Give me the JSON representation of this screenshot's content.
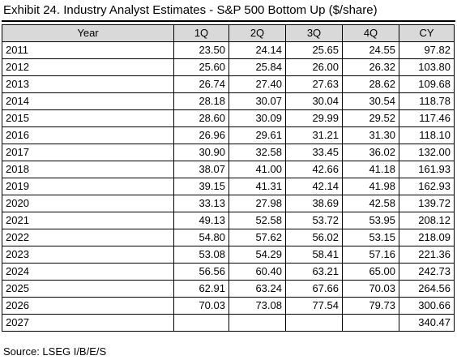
{
  "title": "Exhibit 24. Industry Analyst Estimates - S&P 500 Bottom Up ($/share)",
  "table": {
    "columns": [
      "Year",
      "1Q",
      "2Q",
      "3Q",
      "4Q",
      "CY"
    ],
    "rows": [
      [
        "2011",
        "23.50",
        "24.14",
        "25.65",
        "24.55",
        "97.82"
      ],
      [
        "2012",
        "25.60",
        "25.84",
        "26.00",
        "26.32",
        "103.80"
      ],
      [
        "2013",
        "26.74",
        "27.40",
        "27.63",
        "28.62",
        "109.68"
      ],
      [
        "2014",
        "28.18",
        "30.07",
        "30.04",
        "30.54",
        "118.78"
      ],
      [
        "2015",
        "28.60",
        "30.09",
        "29.99",
        "29.52",
        "117.46"
      ],
      [
        "2016",
        "26.96",
        "29.61",
        "31.21",
        "31.30",
        "118.10"
      ],
      [
        "2017",
        "30.90",
        "32.58",
        "33.45",
        "36.02",
        "132.00"
      ],
      [
        "2018",
        "38.07",
        "41.00",
        "42.66",
        "41.18",
        "161.93"
      ],
      [
        "2019",
        "39.15",
        "41.31",
        "42.14",
        "41.98",
        "162.93"
      ],
      [
        "2020",
        "33.13",
        "27.98",
        "38.69",
        "42.58",
        "139.72"
      ],
      [
        "2021",
        "49.13",
        "52.58",
        "53.72",
        "53.95",
        "208.12"
      ],
      [
        "2022",
        "54.80",
        "57.62",
        "56.02",
        "53.15",
        "218.09"
      ],
      [
        "2023",
        "53.08",
        "54.29",
        "58.41",
        "57.16",
        "221.36"
      ],
      [
        "2024",
        "56.56",
        "60.40",
        "63.21",
        "65.00",
        "242.73"
      ],
      [
        "2025",
        "62.91",
        "63.24",
        "67.66",
        "70.03",
        "264.56"
      ],
      [
        "2026",
        "70.03",
        "73.08",
        "77.54",
        "79.73",
        "300.66"
      ],
      [
        "2027",
        "",
        "",
        "",
        "",
        "340.47"
      ]
    ]
  },
  "source": "Source: LSEG I/B/E/S",
  "colors": {
    "header_background": "#d9d9d9",
    "border": "#000000",
    "text": "#000000"
  }
}
